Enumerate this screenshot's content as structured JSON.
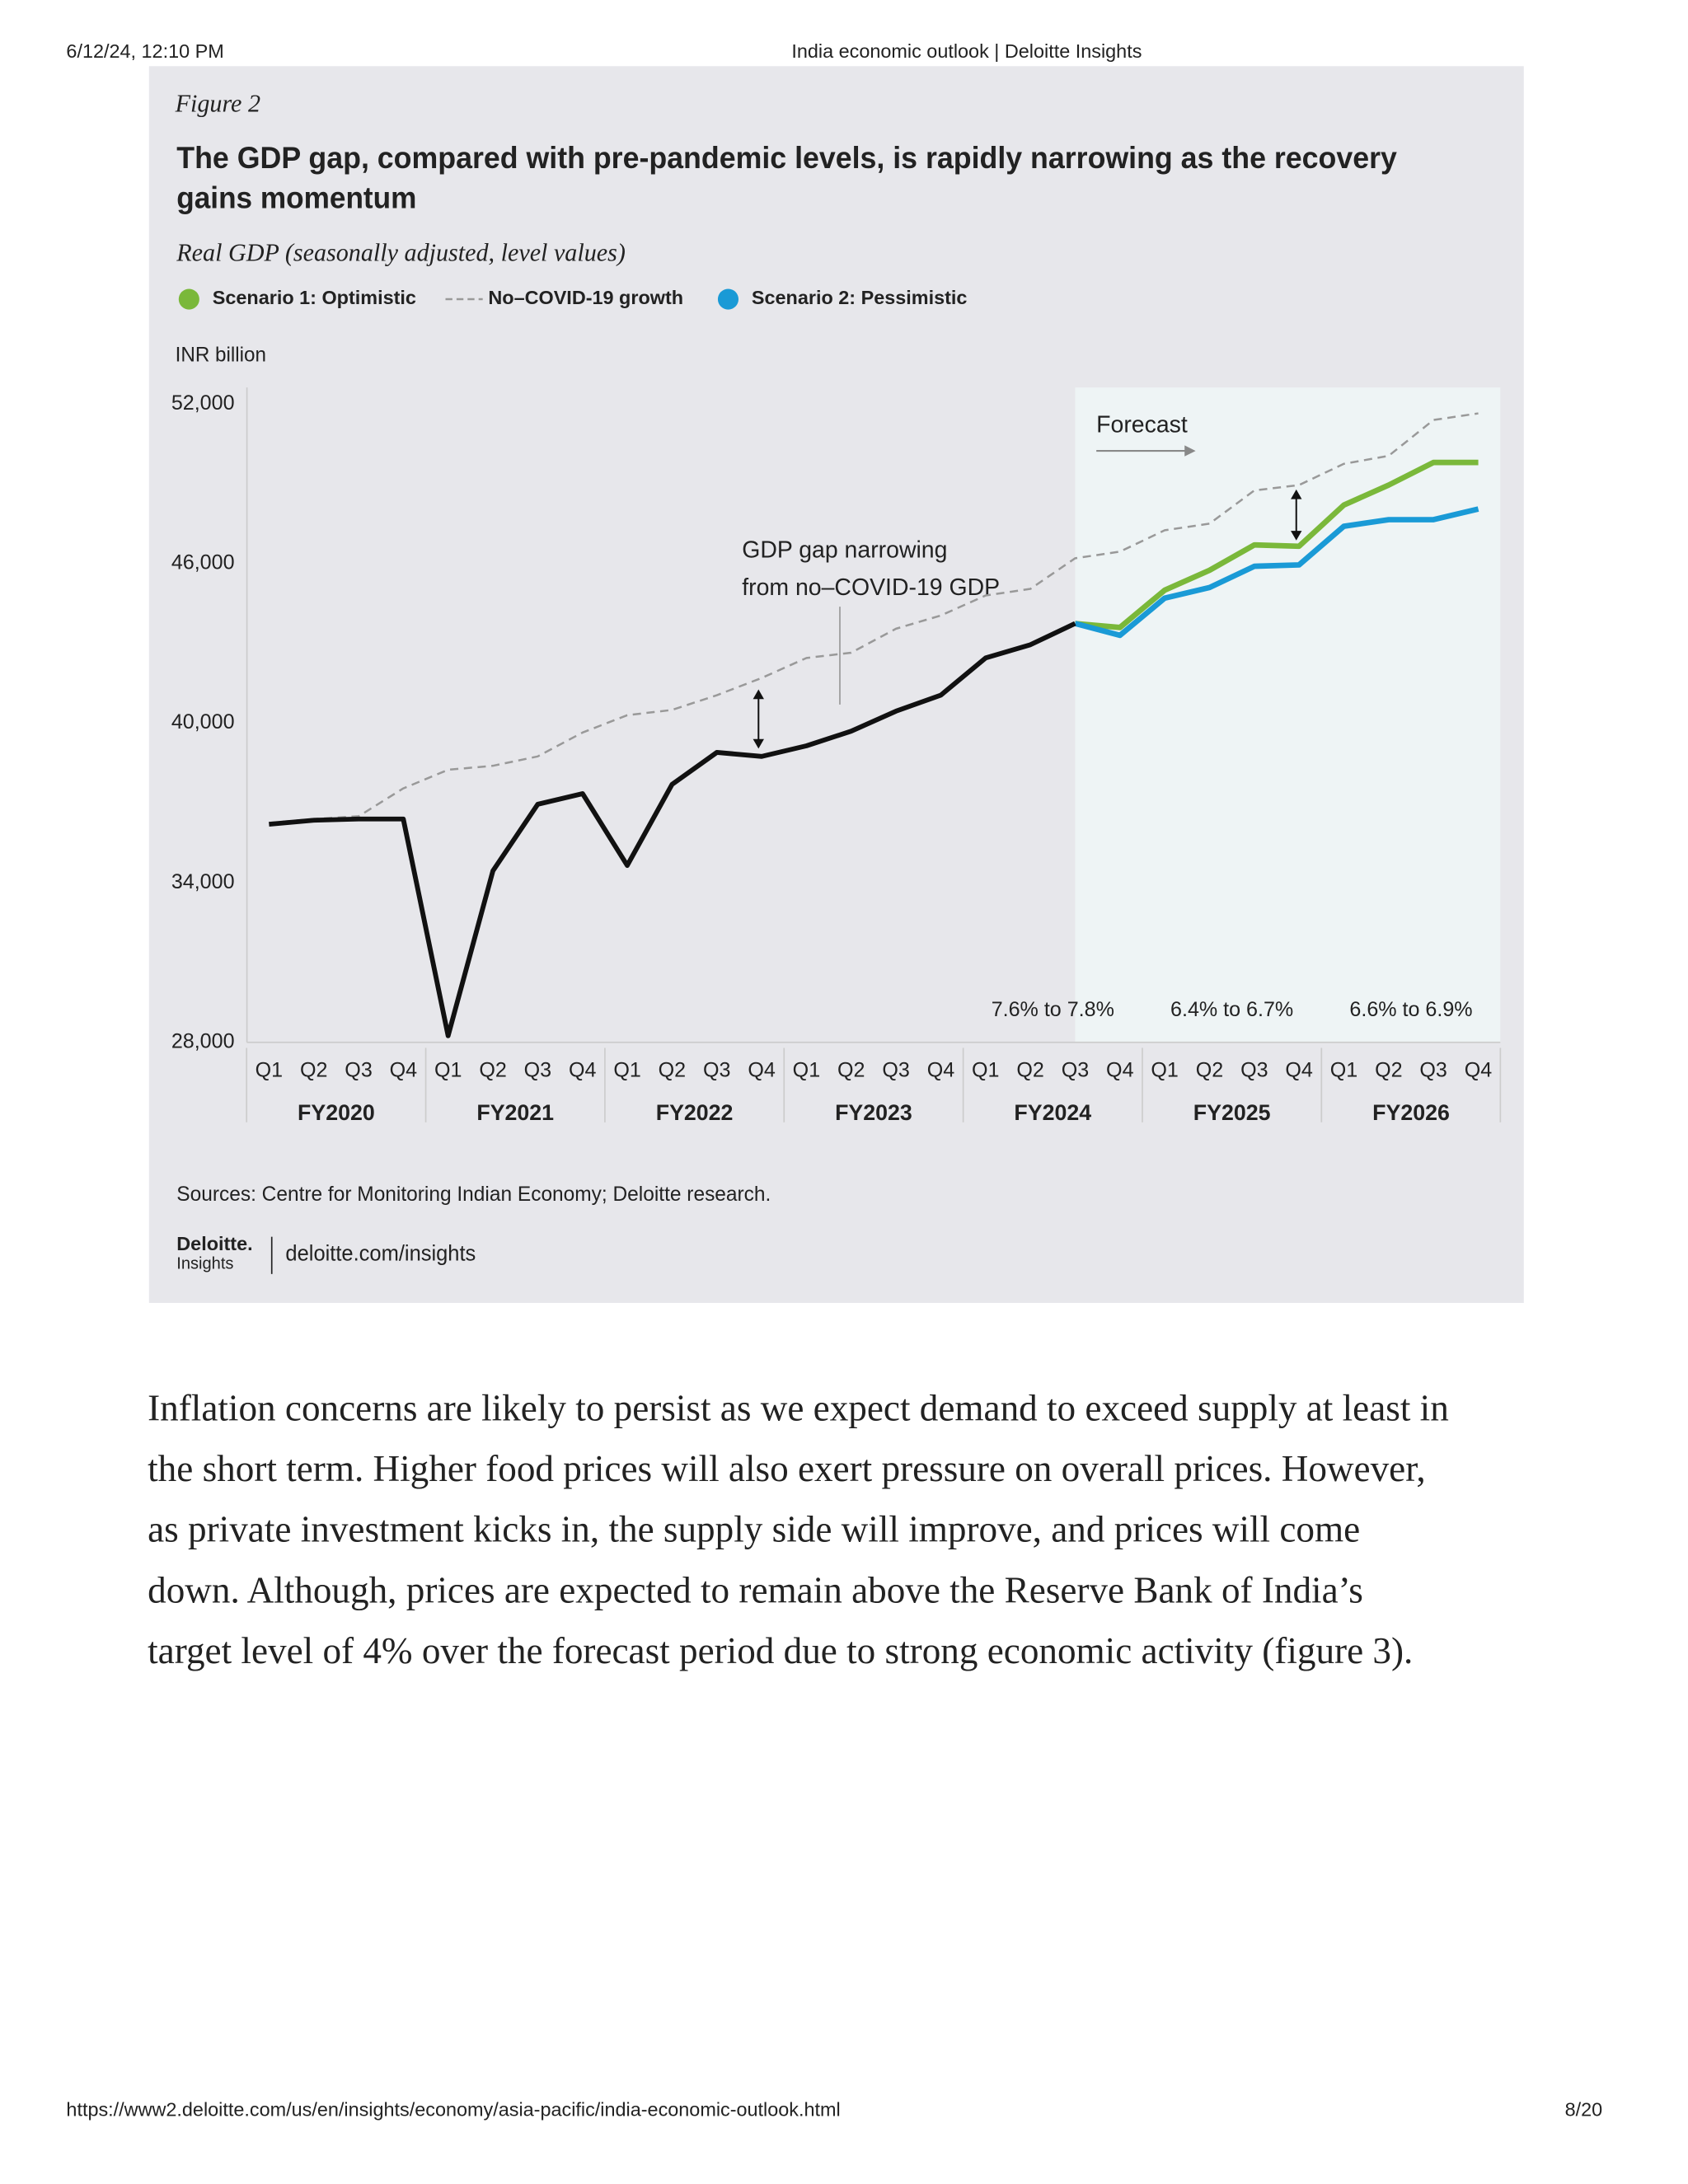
{
  "header": {
    "datetime": "6/12/24, 12:10 PM",
    "title": "India economic outlook | Deloitte Insights"
  },
  "chart_data": {
    "type": "line",
    "figure_label": "Figure 2",
    "title_lines": [
      "The GDP gap, compared with pre-pandemic levels, is rapidly narrowing as the recovery",
      "gains momentum"
    ],
    "subtitle": "Real GDP (seasonally adjusted, level values)",
    "y_axis_label": "INR billion",
    "categories": [
      "Q1",
      "Q2",
      "Q3",
      "Q4",
      "Q1",
      "Q2",
      "Q3",
      "Q4",
      "Q1",
      "Q2",
      "Q3",
      "Q4",
      "Q1",
      "Q2",
      "Q3",
      "Q4",
      "Q1",
      "Q2",
      "Q3",
      "Q4",
      "Q1",
      "Q2",
      "Q3",
      "Q4",
      "Q1",
      "Q2",
      "Q3",
      "Q4"
    ],
    "groups": [
      "FY2020",
      "FY2021",
      "FY2022",
      "FY2023",
      "FY2024",
      "FY2025",
      "FY2026"
    ],
    "series": [
      {
        "name": "Scenario 1: Optimistic",
        "color": "#7ab83a",
        "marker": "dot",
        "values": [
          null,
          null,
          null,
          null,
          null,
          null,
          null,
          null,
          null,
          null,
          null,
          null,
          null,
          null,
          null,
          null,
          null,
          null,
          43750,
          43600,
          45000,
          45750,
          46700,
          46650,
          48200,
          48950,
          49800,
          49800
        ]
      },
      {
        "name": "No–COVID-19 growth",
        "color": "#999999",
        "marker": "dash",
        "dashed": true,
        "values": [
          36250,
          36400,
          36500,
          37550,
          38250,
          38400,
          38750,
          39650,
          40300,
          40500,
          41050,
          41700,
          42450,
          42650,
          43550,
          44050,
          44800,
          45050,
          46200,
          46450,
          47250,
          47500,
          48750,
          48950,
          49750,
          50050,
          51400,
          51650
        ]
      },
      {
        "name": "Scenario 2: Pessimistic",
        "color": "#1a9ad6",
        "marker": "dot",
        "values": [
          null,
          null,
          null,
          null,
          null,
          null,
          null,
          null,
          null,
          null,
          null,
          null,
          null,
          null,
          null,
          null,
          null,
          null,
          43750,
          43300,
          44700,
          45100,
          45900,
          45950,
          47400,
          47650,
          47650,
          48050
        ]
      },
      {
        "color": "#111111",
        "values": [
          36200,
          36350,
          36400,
          36400,
          28250,
          34450,
          36950,
          37350,
          34650,
          37700,
          38900,
          38750,
          39150,
          39700,
          40450,
          41050,
          42450,
          42950,
          43750,
          null,
          null,
          null,
          null,
          null,
          null,
          null,
          null,
          null
        ]
      }
    ],
    "ylim": [
      28000,
      52000
    ],
    "yticks": [
      {
        "value": 28000,
        "label": "28,000"
      },
      {
        "value": 34000,
        "label": "34,000"
      },
      {
        "value": 40000,
        "label": "40,000"
      },
      {
        "value": 46000,
        "label": "46,000"
      },
      {
        "value": 52000,
        "label": "52,000"
      }
    ],
    "forecast_label": "Forecast",
    "annotation_lines": [
      "GDP gap narrowing",
      "from no–COVID-19 GDP"
    ],
    "range_labels": [
      "7.6% to 7.8%",
      "6.4% to 6.7%",
      "6.6% to 6.9%"
    ],
    "source": "Sources: Centre for Monitoring Indian Economy; Deloitte research.",
    "logo_lines": [
      "Deloitte.",
      "Insights"
    ],
    "logo_url": "deloitte.com/insights"
  },
  "body": {
    "paragraph_lines": [
      "Inflation concerns are likely to persist as we expect demand to exceed supply at least in",
      "the short term. Higher food prices will also exert pressure on overall prices. However,",
      "as private investment kicks in, the supply side will improve, and prices will come",
      "down. Although, prices are expected to remain above the Reserve Bank of India’s",
      "target level of 4% over the forecast period due to strong economic activity (figure 3)."
    ]
  },
  "footer": {
    "url": "https://www2.deloitte.com/us/en/insights/economy/asia-pacific/india-economic-outlook.html",
    "page": "8/20"
  }
}
